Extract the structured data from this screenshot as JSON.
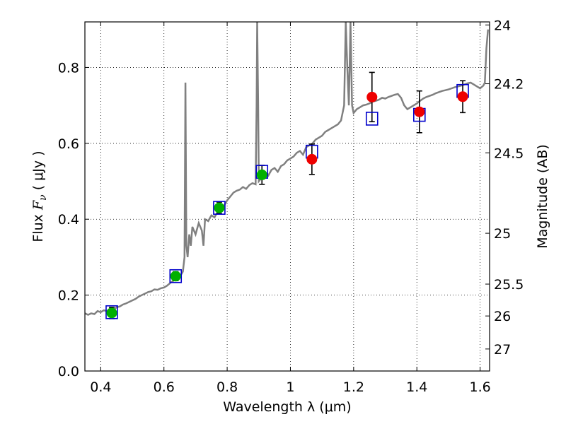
{
  "chart_data": {
    "type": "scatter",
    "title": "",
    "xlabel": "Wavelength  λ (μm)",
    "ylabel_prefix": "Flux  ",
    "ylabel_symbol": "F",
    "ylabel_subscript": "ν",
    "ylabel_suffix": "  ( μJy )",
    "ylabel2": "Magnitude (AB)",
    "xlim": [
      0.35,
      1.63
    ],
    "ylim": [
      0.0,
      0.92
    ],
    "grid": true,
    "colors": {
      "spectrum": "#808080",
      "box": "#0000cc",
      "green": "#00b000",
      "red": "#ee0000",
      "error": "#000000"
    },
    "x_ticks": [
      {
        "value": 0.4,
        "label": "0.4"
      },
      {
        "value": 0.6,
        "label": "0.6"
      },
      {
        "value": 0.8,
        "label": "0.8"
      },
      {
        "value": 1.0,
        "label": "1"
      },
      {
        "value": 1.2,
        "label": "1.2"
      },
      {
        "value": 1.4,
        "label": "1.4"
      },
      {
        "value": 1.6,
        "label": "1.6"
      }
    ],
    "y_ticks": [
      {
        "value": 0.0,
        "label": "0.0"
      },
      {
        "value": 0.2,
        "label": "0.2"
      },
      {
        "value": 0.4,
        "label": "0.4"
      },
      {
        "value": 0.6,
        "label": "0.6"
      },
      {
        "value": 0.8,
        "label": "0.8"
      }
    ],
    "mag_ticks": [
      {
        "flux": 0.912,
        "label": "24"
      },
      {
        "flux": 0.757,
        "label": "24.2"
      },
      {
        "flux": 0.575,
        "label": "24.5"
      },
      {
        "flux": 0.363,
        "label": "25"
      },
      {
        "flux": 0.229,
        "label": "25.5"
      },
      {
        "flux": 0.145,
        "label": "26"
      },
      {
        "flux": 0.058,
        "label": "27"
      }
    ],
    "model_points": [
      {
        "x": 0.435,
        "y": 0.155
      },
      {
        "x": 0.637,
        "y": 0.25
      },
      {
        "x": 0.775,
        "y": 0.43
      },
      {
        "x": 0.91,
        "y": 0.525
      },
      {
        "x": 1.068,
        "y": 0.578
      },
      {
        "x": 1.258,
        "y": 0.665
      },
      {
        "x": 1.408,
        "y": 0.675
      },
      {
        "x": 1.545,
        "y": 0.738
      }
    ],
    "observed_green": [
      {
        "x": 0.435,
        "y": 0.153,
        "err": 0.015
      },
      {
        "x": 0.637,
        "y": 0.25,
        "err": 0.012
      },
      {
        "x": 0.775,
        "y": 0.43,
        "err": 0.015
      },
      {
        "x": 0.91,
        "y": 0.517,
        "err": 0.025
      }
    ],
    "observed_red": [
      {
        "x": 1.068,
        "y": 0.558,
        "err": 0.04
      },
      {
        "x": 1.258,
        "y": 0.722,
        "err": 0.065
      },
      {
        "x": 1.408,
        "y": 0.683,
        "err": 0.055
      },
      {
        "x": 1.545,
        "y": 0.723,
        "err": 0.042
      }
    ],
    "spectrum": [
      [
        0.35,
        0.152
      ],
      [
        0.36,
        0.148
      ],
      [
        0.37,
        0.152
      ],
      [
        0.38,
        0.15
      ],
      [
        0.39,
        0.158
      ],
      [
        0.4,
        0.155
      ],
      [
        0.41,
        0.16
      ],
      [
        0.42,
        0.158
      ],
      [
        0.43,
        0.165
      ],
      [
        0.44,
        0.16
      ],
      [
        0.45,
        0.168
      ],
      [
        0.46,
        0.17
      ],
      [
        0.47,
        0.175
      ],
      [
        0.48,
        0.178
      ],
      [
        0.49,
        0.182
      ],
      [
        0.5,
        0.186
      ],
      [
        0.51,
        0.19
      ],
      [
        0.52,
        0.196
      ],
      [
        0.53,
        0.2
      ],
      [
        0.54,
        0.204
      ],
      [
        0.55,
        0.208
      ],
      [
        0.56,
        0.21
      ],
      [
        0.57,
        0.215
      ],
      [
        0.58,
        0.214
      ],
      [
        0.59,
        0.218
      ],
      [
        0.6,
        0.22
      ],
      [
        0.61,
        0.225
      ],
      [
        0.62,
        0.232
      ],
      [
        0.63,
        0.238
      ],
      [
        0.64,
        0.242
      ],
      [
        0.65,
        0.248
      ],
      [
        0.655,
        0.255
      ],
      [
        0.66,
        0.262
      ],
      [
        0.665,
        0.3
      ],
      [
        0.668,
        0.76
      ],
      [
        0.671,
        0.33
      ],
      [
        0.675,
        0.3
      ],
      [
        0.68,
        0.36
      ],
      [
        0.685,
        0.33
      ],
      [
        0.69,
        0.38
      ],
      [
        0.7,
        0.36
      ],
      [
        0.71,
        0.39
      ],
      [
        0.72,
        0.37
      ],
      [
        0.725,
        0.33
      ],
      [
        0.73,
        0.4
      ],
      [
        0.74,
        0.395
      ],
      [
        0.75,
        0.41
      ],
      [
        0.76,
        0.405
      ],
      [
        0.77,
        0.42
      ],
      [
        0.78,
        0.43
      ],
      [
        0.79,
        0.435
      ],
      [
        0.8,
        0.45
      ],
      [
        0.81,
        0.46
      ],
      [
        0.82,
        0.47
      ],
      [
        0.83,
        0.475
      ],
      [
        0.84,
        0.478
      ],
      [
        0.85,
        0.485
      ],
      [
        0.86,
        0.48
      ],
      [
        0.87,
        0.49
      ],
      [
        0.88,
        0.495
      ],
      [
        0.89,
        0.492
      ],
      [
        0.893,
        0.7
      ],
      [
        0.895,
        0.92
      ],
      [
        0.898,
        0.7
      ],
      [
        0.9,
        0.5
      ],
      [
        0.91,
        0.51
      ],
      [
        0.92,
        0.52
      ],
      [
        0.93,
        0.515
      ],
      [
        0.94,
        0.53
      ],
      [
        0.95,
        0.535
      ],
      [
        0.96,
        0.525
      ],
      [
        0.97,
        0.54
      ],
      [
        0.98,
        0.545
      ],
      [
        0.99,
        0.555
      ],
      [
        1.0,
        0.56
      ],
      [
        1.01,
        0.565
      ],
      [
        1.02,
        0.575
      ],
      [
        1.03,
        0.58
      ],
      [
        1.04,
        0.57
      ],
      [
        1.05,
        0.59
      ],
      [
        1.06,
        0.595
      ],
      [
        1.07,
        0.6
      ],
      [
        1.08,
        0.61
      ],
      [
        1.09,
        0.615
      ],
      [
        1.1,
        0.62
      ],
      [
        1.11,
        0.63
      ],
      [
        1.12,
        0.635
      ],
      [
        1.13,
        0.64
      ],
      [
        1.14,
        0.645
      ],
      [
        1.15,
        0.65
      ],
      [
        1.16,
        0.66
      ],
      [
        1.17,
        0.7
      ],
      [
        1.175,
        0.92
      ],
      [
        1.18,
        0.8
      ],
      [
        1.185,
        0.7
      ],
      [
        1.19,
        0.92
      ],
      [
        1.195,
        0.7
      ],
      [
        1.2,
        0.68
      ],
      [
        1.21,
        0.69
      ],
      [
        1.22,
        0.695
      ],
      [
        1.23,
        0.7
      ],
      [
        1.24,
        0.702
      ],
      [
        1.25,
        0.705
      ],
      [
        1.26,
        0.71
      ],
      [
        1.27,
        0.712
      ],
      [
        1.28,
        0.715
      ],
      [
        1.29,
        0.72
      ],
      [
        1.3,
        0.718
      ],
      [
        1.31,
        0.722
      ],
      [
        1.32,
        0.725
      ],
      [
        1.33,
        0.728
      ],
      [
        1.34,
        0.73
      ],
      [
        1.35,
        0.72
      ],
      [
        1.36,
        0.7
      ],
      [
        1.37,
        0.69
      ],
      [
        1.38,
        0.695
      ],
      [
        1.39,
        0.7
      ],
      [
        1.4,
        0.705
      ],
      [
        1.41,
        0.712
      ],
      [
        1.42,
        0.718
      ],
      [
        1.43,
        0.722
      ],
      [
        1.44,
        0.725
      ],
      [
        1.45,
        0.728
      ],
      [
        1.46,
        0.732
      ],
      [
        1.47,
        0.735
      ],
      [
        1.48,
        0.738
      ],
      [
        1.49,
        0.74
      ],
      [
        1.5,
        0.742
      ],
      [
        1.51,
        0.745
      ],
      [
        1.52,
        0.748
      ],
      [
        1.53,
        0.75
      ],
      [
        1.54,
        0.752
      ],
      [
        1.55,
        0.755
      ],
      [
        1.56,
        0.758
      ],
      [
        1.57,
        0.76
      ],
      [
        1.58,
        0.755
      ],
      [
        1.59,
        0.75
      ],
      [
        1.6,
        0.745
      ],
      [
        1.61,
        0.752
      ],
      [
        1.615,
        0.76
      ],
      [
        1.62,
        0.85
      ],
      [
        1.625,
        0.9
      ]
    ]
  }
}
